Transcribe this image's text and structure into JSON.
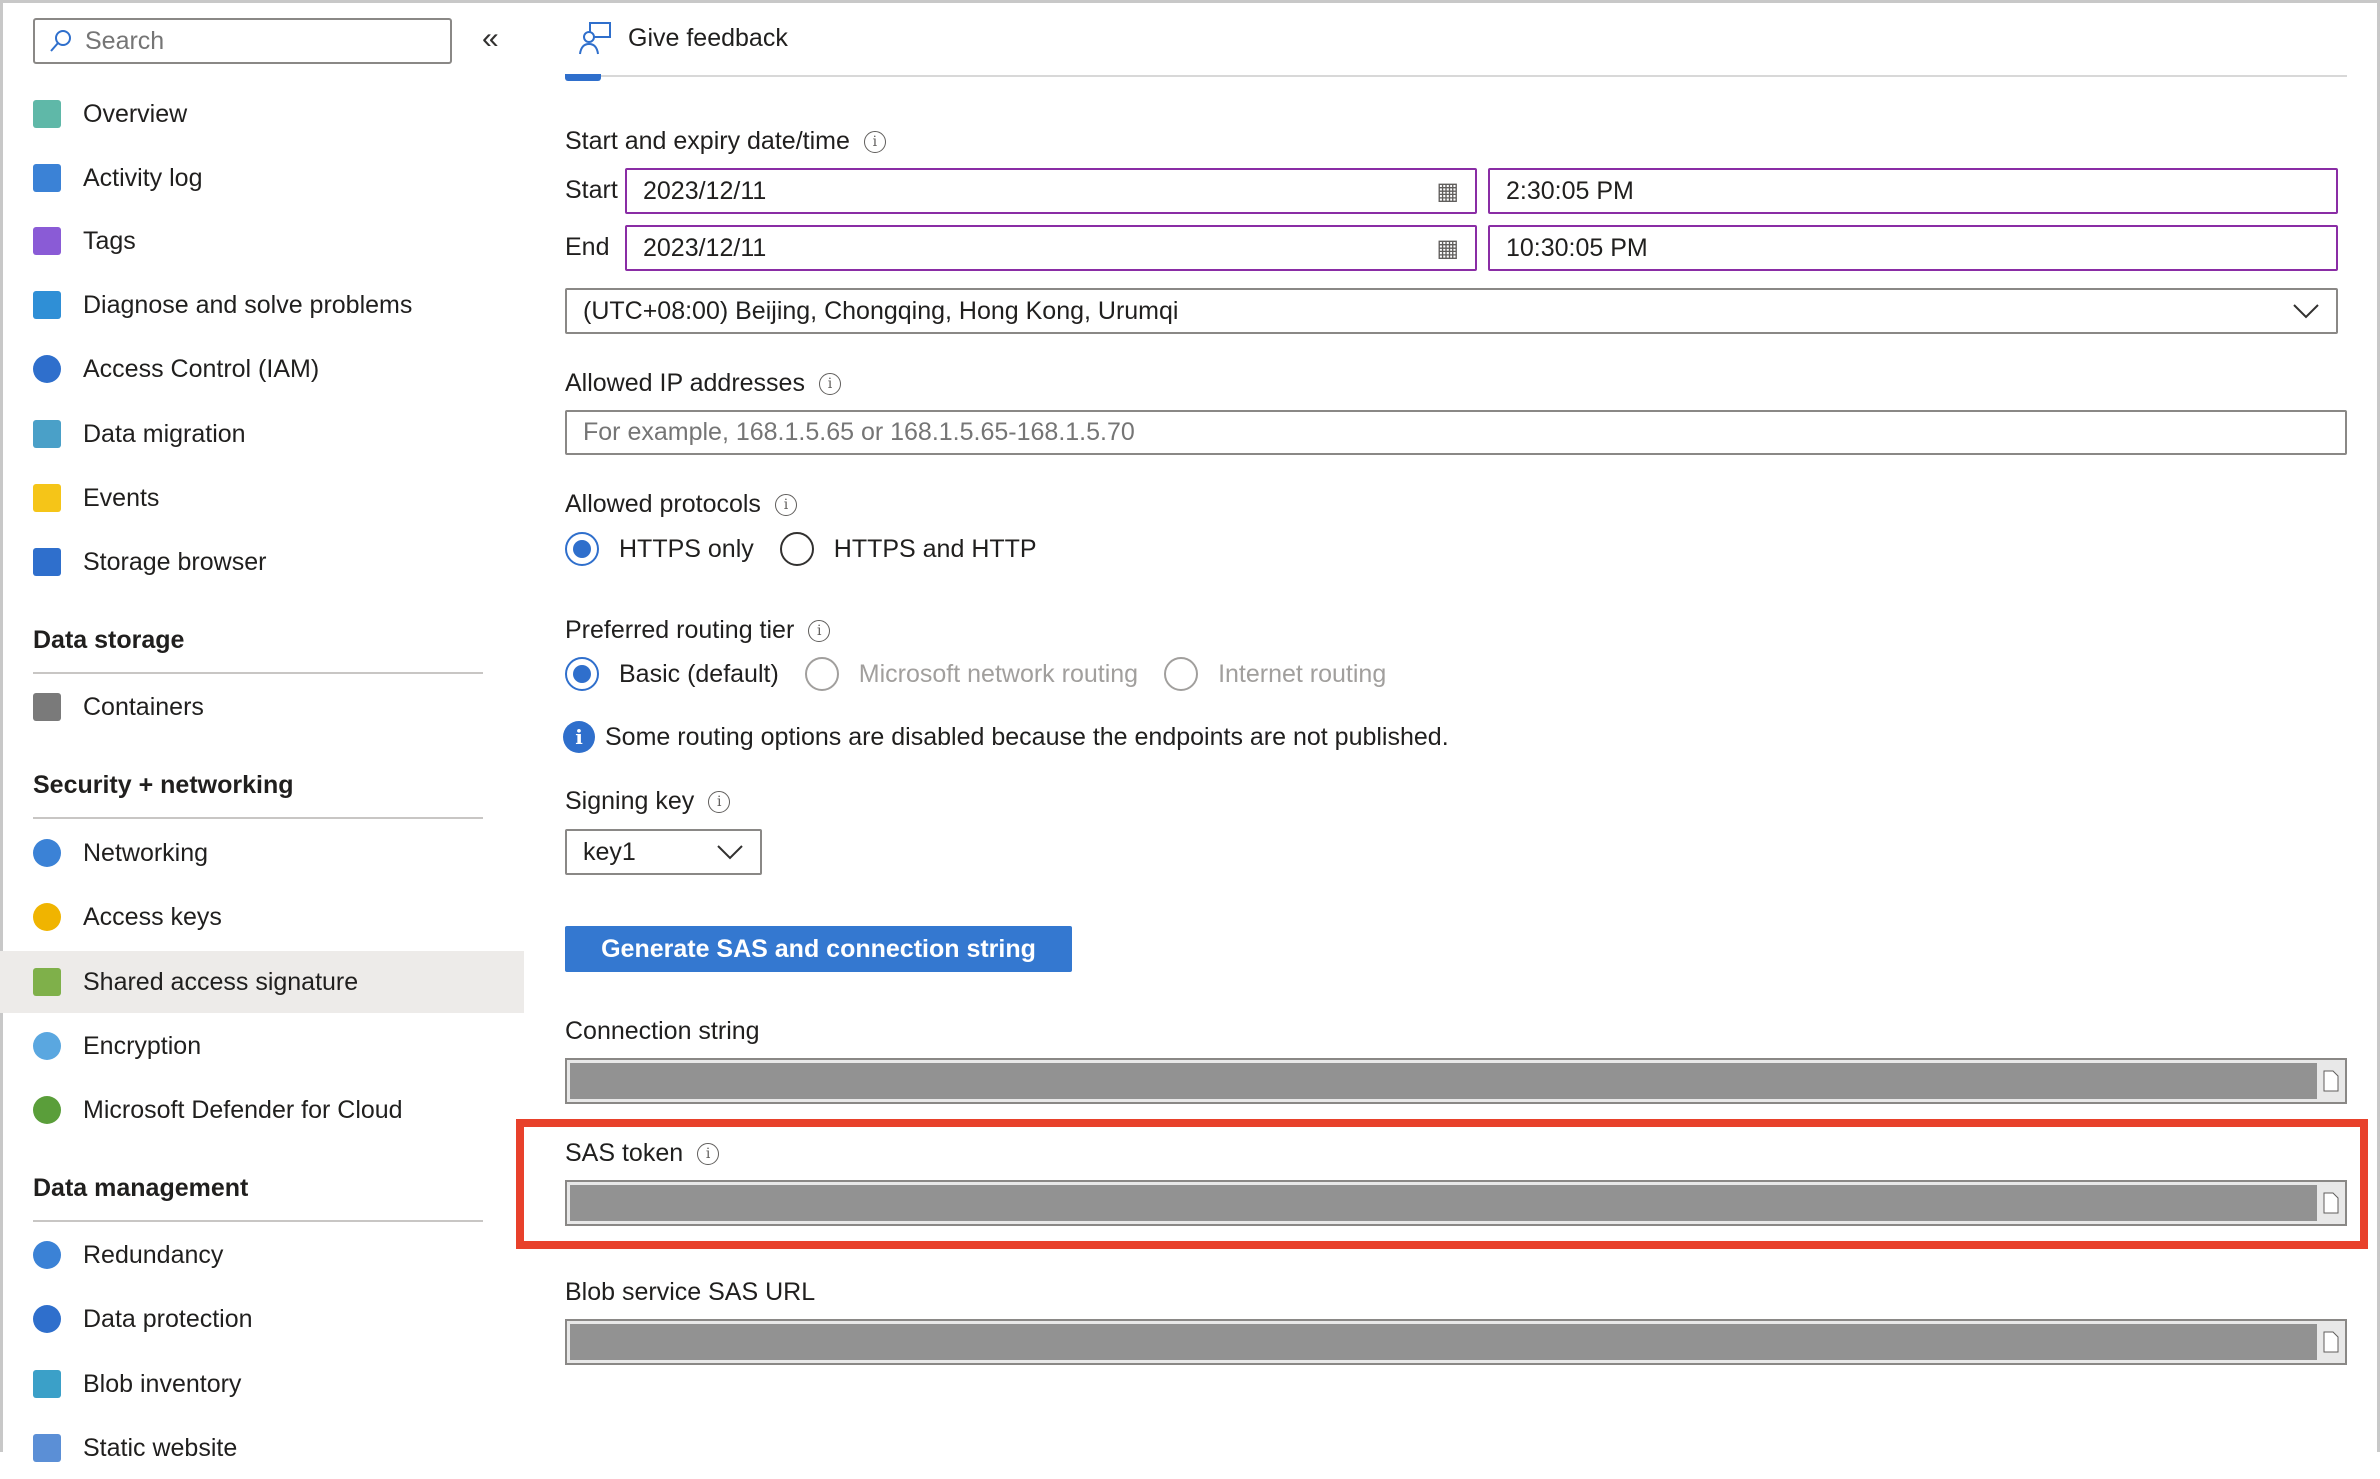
{
  "sidebar": {
    "search_placeholder": "Search",
    "collapse_label": "«",
    "items": [
      {
        "label": "Overview",
        "icon": "overview-icon"
      },
      {
        "label": "Activity log",
        "icon": "activity-log-icon"
      },
      {
        "label": "Tags",
        "icon": "tag-icon"
      },
      {
        "label": "Diagnose and solve problems",
        "icon": "wrench-icon"
      },
      {
        "label": "Access Control (IAM)",
        "icon": "people-icon"
      },
      {
        "label": "Data migration",
        "icon": "data-migration-icon"
      },
      {
        "label": "Events",
        "icon": "lightning-icon"
      },
      {
        "label": "Storage browser",
        "icon": "storage-browser-icon"
      }
    ],
    "sections": [
      {
        "title": "Data storage",
        "items": [
          {
            "label": "Containers",
            "icon": "container-icon"
          }
        ]
      },
      {
        "title": "Security + networking",
        "items": [
          {
            "label": "Networking",
            "icon": "globe-network-icon"
          },
          {
            "label": "Access keys",
            "icon": "key-icon"
          },
          {
            "label": "Shared access signature",
            "icon": "link-icon",
            "selected": true
          },
          {
            "label": "Encryption",
            "icon": "lock-icon"
          },
          {
            "label": "Microsoft Defender for Cloud",
            "icon": "shield-icon"
          }
        ]
      },
      {
        "title": "Data management",
        "items": [
          {
            "label": "Redundancy",
            "icon": "globe-icon"
          },
          {
            "label": "Data protection",
            "icon": "shield-blue-icon"
          },
          {
            "label": "Blob inventory",
            "icon": "inventory-icon"
          },
          {
            "label": "Static website",
            "icon": "website-icon"
          }
        ]
      }
    ]
  },
  "toolbar": {
    "feedback_label": "Give feedback"
  },
  "form": {
    "datetime_label": "Start and expiry date/time",
    "start_label": "Start",
    "start_date": "2023/12/11",
    "start_time": "2:30:05 PM",
    "end_label": "End",
    "end_date": "2023/12/11",
    "end_time": "10:30:05 PM",
    "timezone": "(UTC+08:00) Beijing, Chongqing, Hong Kong, Urumqi",
    "ip_label": "Allowed IP addresses",
    "ip_placeholder": "For example, 168.1.5.65 or 168.1.5.65-168.1.5.70",
    "protocols_label": "Allowed protocols",
    "protocols": [
      {
        "label": "HTTPS only",
        "selected": true
      },
      {
        "label": "HTTPS and HTTP",
        "selected": false
      }
    ],
    "routing_label": "Preferred routing tier",
    "routing": [
      {
        "label": "Basic (default)",
        "selected": true
      },
      {
        "label": "Microsoft network routing",
        "disabled": true
      },
      {
        "label": "Internet routing",
        "disabled": true
      }
    ],
    "routing_info": "Some routing options are disabled because the endpoints are not published.",
    "signing_key_label": "Signing key",
    "signing_key": "key1",
    "generate_label": "Generate SAS and connection string",
    "connection_string_label": "Connection string",
    "sas_token_label": "SAS token",
    "blob_url_label": "Blob service SAS URL"
  },
  "colors": {
    "accent": "#3478d0",
    "highlight": "#e8412b",
    "focus_border": "#8a2da5",
    "redacted": "#929292"
  }
}
